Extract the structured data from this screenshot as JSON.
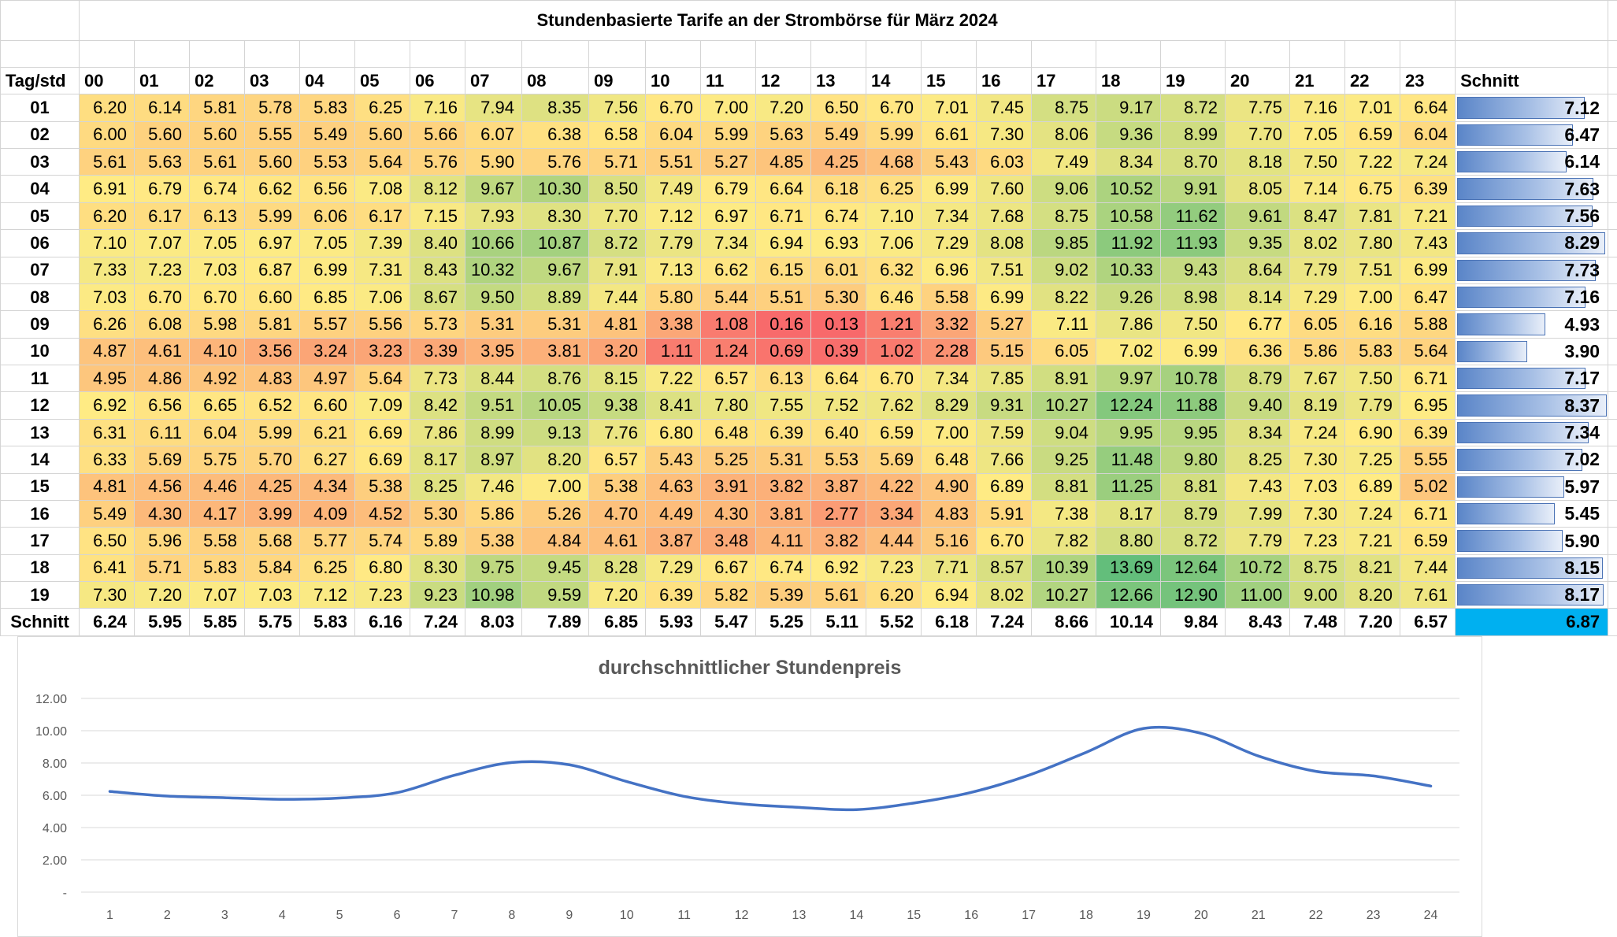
{
  "title": "Stundenbasierte Tarife an der Strombörse für März 2024",
  "header": {
    "corner": "Tag/std",
    "hours": [
      "00",
      "01",
      "02",
      "03",
      "04",
      "05",
      "06",
      "07",
      "08",
      "09",
      "10",
      "11",
      "12",
      "13",
      "14",
      "15",
      "16",
      "17",
      "18",
      "19",
      "20",
      "21",
      "22",
      "23"
    ],
    "avg": "Schnitt"
  },
  "rows": [
    {
      "day": "01",
      "values": [
        6.2,
        6.14,
        5.81,
        5.78,
        5.83,
        6.25,
        7.16,
        7.94,
        8.35,
        7.56,
        6.7,
        7.0,
        7.2,
        6.5,
        6.7,
        7.01,
        7.45,
        8.75,
        9.17,
        8.72,
        7.75,
        7.16,
        7.01,
        6.64
      ],
      "avg": 7.12
    },
    {
      "day": "02",
      "values": [
        6.0,
        5.6,
        5.6,
        5.55,
        5.49,
        5.6,
        5.66,
        6.07,
        6.38,
        6.58,
        6.04,
        5.99,
        5.63,
        5.49,
        5.99,
        6.61,
        7.3,
        8.06,
        9.36,
        8.99,
        7.7,
        7.05,
        6.59,
        6.04
      ],
      "avg": 6.47
    },
    {
      "day": "03",
      "values": [
        5.61,
        5.63,
        5.61,
        5.6,
        5.53,
        5.64,
        5.76,
        5.9,
        5.76,
        5.71,
        5.51,
        5.27,
        4.85,
        4.25,
        4.68,
        5.43,
        6.03,
        7.49,
        8.34,
        8.7,
        8.18,
        7.5,
        7.22,
        7.24
      ],
      "avg": 6.14
    },
    {
      "day": "04",
      "values": [
        6.91,
        6.79,
        6.74,
        6.62,
        6.56,
        7.08,
        8.12,
        9.67,
        10.3,
        8.5,
        7.49,
        6.79,
        6.64,
        6.18,
        6.25,
        6.99,
        7.6,
        9.06,
        10.52,
        9.91,
        8.05,
        7.14,
        6.75,
        6.39
      ],
      "avg": 7.63
    },
    {
      "day": "05",
      "values": [
        6.2,
        6.17,
        6.13,
        5.99,
        6.06,
        6.17,
        7.15,
        7.93,
        8.3,
        7.7,
        7.12,
        6.97,
        6.71,
        6.74,
        7.1,
        7.34,
        7.68,
        8.75,
        10.58,
        11.62,
        9.61,
        8.47,
        7.81,
        7.21
      ],
      "avg": 7.56
    },
    {
      "day": "06",
      "values": [
        7.1,
        7.07,
        7.05,
        6.97,
        7.05,
        7.39,
        8.4,
        10.66,
        10.87,
        8.72,
        7.79,
        7.34,
        6.94,
        6.93,
        7.06,
        7.29,
        8.08,
        9.85,
        11.92,
        11.93,
        9.35,
        8.02,
        7.8,
        7.43
      ],
      "avg": 8.29
    },
    {
      "day": "07",
      "values": [
        7.33,
        7.23,
        7.03,
        6.87,
        6.99,
        7.31,
        8.43,
        10.32,
        9.67,
        7.91,
        7.13,
        6.62,
        6.15,
        6.01,
        6.32,
        6.96,
        7.51,
        9.02,
        10.33,
        9.43,
        8.64,
        7.79,
        7.51,
        6.99
      ],
      "avg": 7.73
    },
    {
      "day": "08",
      "values": [
        7.03,
        6.7,
        6.7,
        6.6,
        6.85,
        7.06,
        8.67,
        9.5,
        8.89,
        7.44,
        5.8,
        5.44,
        5.51,
        5.3,
        6.46,
        5.58,
        6.99,
        8.22,
        9.26,
        8.98,
        8.14,
        7.29,
        7.0,
        6.47
      ],
      "avg": 7.16
    },
    {
      "day": "09",
      "values": [
        6.26,
        6.08,
        5.98,
        5.81,
        5.57,
        5.56,
        5.73,
        5.31,
        5.31,
        4.81,
        3.38,
        1.08,
        0.16,
        0.13,
        1.21,
        3.32,
        5.27,
        7.11,
        7.86,
        7.5,
        6.77,
        6.05,
        6.16,
        5.88
      ],
      "avg": 4.93
    },
    {
      "day": "10",
      "values": [
        4.87,
        4.61,
        4.1,
        3.56,
        3.24,
        3.23,
        3.39,
        3.95,
        3.81,
        3.2,
        1.11,
        1.24,
        0.69,
        0.39,
        1.02,
        2.28,
        5.15,
        6.05,
        7.02,
        6.99,
        6.36,
        5.86,
        5.83,
        5.64
      ],
      "avg": 3.9
    },
    {
      "day": "11",
      "values": [
        4.95,
        4.86,
        4.92,
        4.83,
        4.97,
        5.64,
        7.73,
        8.44,
        8.76,
        8.15,
        7.22,
        6.57,
        6.13,
        6.64,
        6.7,
        7.34,
        7.85,
        8.91,
        9.97,
        10.78,
        8.79,
        7.67,
        7.5,
        6.71
      ],
      "avg": 7.17
    },
    {
      "day": "12",
      "values": [
        6.92,
        6.56,
        6.65,
        6.52,
        6.6,
        7.09,
        8.42,
        9.51,
        10.05,
        9.38,
        8.41,
        7.8,
        7.55,
        7.52,
        7.62,
        8.29,
        9.31,
        10.27,
        12.24,
        11.88,
        9.4,
        8.19,
        7.79,
        6.95
      ],
      "avg": 8.37
    },
    {
      "day": "13",
      "values": [
        6.31,
        6.11,
        6.04,
        5.99,
        6.21,
        6.69,
        7.86,
        8.99,
        9.13,
        7.76,
        6.8,
        6.48,
        6.39,
        6.4,
        6.59,
        7.0,
        7.59,
        9.04,
        9.95,
        9.95,
        8.34,
        7.24,
        6.9,
        6.39
      ],
      "avg": 7.34
    },
    {
      "day": "14",
      "values": [
        6.33,
        5.69,
        5.75,
        5.7,
        6.27,
        6.69,
        8.17,
        8.97,
        8.2,
        6.57,
        5.43,
        5.25,
        5.31,
        5.53,
        5.69,
        6.48,
        7.66,
        9.25,
        11.48,
        9.8,
        8.25,
        7.3,
        7.25,
        5.55
      ],
      "avg": 7.02
    },
    {
      "day": "15",
      "values": [
        4.81,
        4.56,
        4.46,
        4.25,
        4.34,
        5.38,
        8.25,
        7.46,
        7.0,
        5.38,
        4.63,
        3.91,
        3.82,
        3.87,
        4.22,
        4.9,
        6.89,
        8.81,
        11.25,
        8.81,
        7.43,
        7.03,
        6.89,
        5.02
      ],
      "avg": 5.97
    },
    {
      "day": "16",
      "values": [
        5.49,
        4.3,
        4.17,
        3.99,
        4.09,
        4.52,
        5.3,
        5.86,
        5.26,
        4.7,
        4.49,
        4.3,
        3.81,
        2.77,
        3.34,
        4.83,
        5.91,
        7.38,
        8.17,
        8.79,
        7.99,
        7.3,
        7.24,
        6.71
      ],
      "avg": 5.45
    },
    {
      "day": "17",
      "values": [
        6.5,
        5.96,
        5.58,
        5.68,
        5.77,
        5.74,
        5.89,
        5.38,
        4.84,
        4.61,
        3.87,
        3.48,
        4.11,
        3.82,
        4.44,
        5.16,
        6.7,
        7.82,
        8.8,
        8.72,
        7.79,
        7.23,
        7.21,
        6.59
      ],
      "avg": 5.9
    },
    {
      "day": "18",
      "values": [
        6.41,
        5.71,
        5.83,
        5.84,
        6.25,
        6.8,
        8.3,
        9.75,
        9.45,
        8.28,
        7.29,
        6.67,
        6.74,
        6.92,
        7.23,
        7.71,
        8.57,
        10.39,
        13.69,
        12.64,
        10.72,
        8.75,
        8.21,
        7.44
      ],
      "avg": 8.15
    },
    {
      "day": "19",
      "values": [
        7.3,
        7.2,
        7.07,
        7.03,
        7.12,
        7.23,
        9.23,
        10.98,
        9.59,
        7.2,
        6.39,
        5.82,
        5.39,
        5.61,
        6.2,
        6.94,
        8.02,
        10.27,
        12.66,
        12.9,
        11.0,
        9.0,
        8.2,
        7.61
      ],
      "avg": 8.17
    }
  ],
  "avg_row": {
    "label": "Schnitt",
    "values": [
      "6.24",
      "5.95",
      "5.85",
      "5.75",
      "5.83",
      "6.16",
      "7.24",
      "8.03",
      "7.89",
      "6.85",
      "5.93",
      "5.47",
      "5.25",
      "5.11",
      "5.52",
      "6.18",
      "7.24",
      "8.66",
      "10.14",
      "9.84",
      "8.43",
      "7.48",
      "7.20",
      "6.57"
    ],
    "total": "6.87"
  },
  "colors": {
    "scale_low": "#f8696b",
    "scale_mid": "#ffeb84",
    "scale_high": "#63be7b",
    "bar": "#5a85c8",
    "total_bg": "#00b0f0",
    "line": "#4472c4"
  },
  "chart_data": {
    "type": "line",
    "title": "durchschnittlicher Stundenpreis",
    "xlabel": "",
    "ylabel": "",
    "x": [
      1,
      2,
      3,
      4,
      5,
      6,
      7,
      8,
      9,
      10,
      11,
      12,
      13,
      14,
      15,
      16,
      17,
      18,
      19,
      20,
      21,
      22,
      23,
      24
    ],
    "values": [
      6.24,
      5.95,
      5.85,
      5.75,
      5.83,
      6.16,
      7.24,
      8.03,
      7.89,
      6.85,
      5.93,
      5.47,
      5.25,
      5.11,
      5.52,
      6.18,
      7.24,
      8.66,
      10.14,
      9.84,
      8.43,
      7.48,
      7.2,
      6.57
    ],
    "ylim": [
      0,
      12
    ],
    "ytick_labels": [
      "-",
      "2.00",
      "4.00",
      "6.00",
      "8.00",
      "10.00",
      "12.00"
    ],
    "grid": true,
    "color": "#4472c4"
  }
}
